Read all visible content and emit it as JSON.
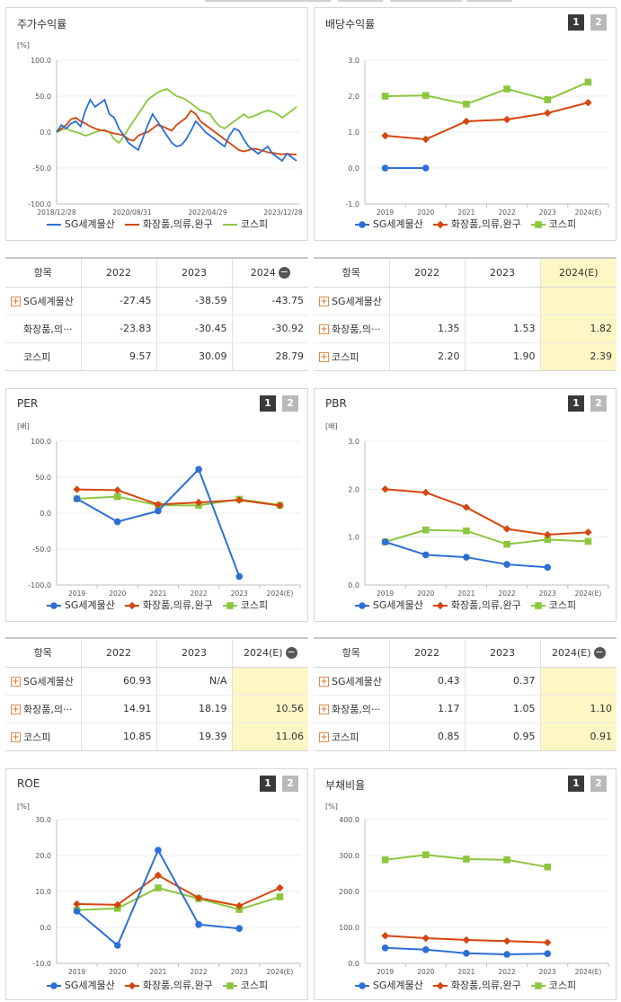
{
  "colors": {
    "sg": "#2c6fd6",
    "cosmetics": "#d6450f",
    "kospi": "#8cc63f",
    "highlight": "#fdf6c5"
  },
  "legend": [
    "SG세계물산",
    "화장품,의류,완구",
    "코스피"
  ],
  "panels": [
    {
      "id": "stock",
      "title": "주가수익률",
      "unit": "[%]",
      "buttons": [],
      "chart_data": {
        "type": "line",
        "title": "주가수익률",
        "ylabel": "[%]",
        "ylim": [
          -100,
          100
        ],
        "yticks": [
          "100.0",
          "50.0",
          "0.0",
          "-50.0",
          "-100.0"
        ],
        "xticks": [
          "2018/12/28",
          "2020/08/31",
          "2022/04/29",
          "2023/12/28"
        ],
        "x_range": [
          "2018/12/28",
          "2024/06/28"
        ],
        "series": [
          {
            "name": "SG세계물산",
            "values": [
              0,
              10,
              5,
              12,
              15,
              8,
              30,
              45,
              35,
              40,
              45,
              25,
              20,
              5,
              -5,
              -15,
              -20,
              -25,
              -8,
              10,
              25,
              15,
              5,
              -5,
              -15,
              -20,
              -18,
              -10,
              2,
              15,
              8,
              0,
              -5,
              -10,
              -15,
              -20,
              -5,
              5,
              2,
              -10,
              -20,
              -25,
              -30,
              -25,
              -20,
              -30,
              -35,
              -40,
              -30,
              -35,
              -40
            ]
          },
          {
            "name": "화장품,의류,완구",
            "values": [
              0,
              5,
              10,
              18,
              20,
              15,
              12,
              8,
              5,
              3,
              2,
              0,
              -2,
              -3,
              -5,
              -10,
              -12,
              -5,
              -2,
              0,
              5,
              10,
              8,
              5,
              2,
              10,
              15,
              20,
              30,
              25,
              15,
              10,
              5,
              0,
              -5,
              -10,
              -15,
              -20,
              -25,
              -27,
              -25,
              -23,
              -24,
              -26,
              -28,
              -29,
              -30,
              -31,
              -30,
              -31,
              -31
            ]
          },
          {
            "name": "코스피",
            "values": [
              0,
              3,
              5,
              2,
              0,
              -2,
              -5,
              -3,
              0,
              2,
              3,
              0,
              -10,
              -15,
              -5,
              5,
              15,
              25,
              35,
              45,
              50,
              55,
              58,
              60,
              55,
              50,
              48,
              45,
              40,
              35,
              30,
              28,
              25,
              15,
              8,
              5,
              10,
              15,
              20,
              25,
              20,
              22,
              25,
              28,
              30,
              28,
              25,
              20,
              25,
              30,
              35
            ]
          }
        ]
      },
      "table": {
        "headers": [
          "항목",
          "2022",
          "2023",
          "2024"
        ],
        "rows": [
          {
            "label": "SG세계물산",
            "plus": true,
            "values": [
              "-27.45",
              "-38.59",
              "-43.75"
            ]
          },
          {
            "label": "화장품,의···",
            "plus": false,
            "values": [
              "-23.83",
              "-30.45",
              "-30.92"
            ]
          },
          {
            "label": "코스피",
            "plus": false,
            "values": [
              "9.57",
              "30.09",
              "28.79"
            ]
          }
        ]
      }
    },
    {
      "id": "dividend",
      "title": "배당수익률",
      "unit": "",
      "buttons": [
        "1",
        "2"
      ],
      "chart_data": {
        "type": "line",
        "title": "배당수익률",
        "categories": [
          "2019",
          "2020",
          "2021",
          "2022",
          "2023",
          "2024(E)"
        ],
        "ylim": [
          -1,
          3
        ],
        "yticks": [
          "3.0",
          "2.0",
          "1.0",
          "0.0",
          "-1.0"
        ],
        "series": [
          {
            "name": "SG세계물산",
            "values": [
              0,
              0,
              null,
              null,
              null,
              null
            ]
          },
          {
            "name": "화장품,의류,완구",
            "values": [
              0.9,
              0.8,
              1.3,
              1.35,
              1.53,
              1.82
            ]
          },
          {
            "name": "코스피",
            "values": [
              2.0,
              2.02,
              1.78,
              2.2,
              1.9,
              2.39
            ]
          }
        ]
      },
      "table": {
        "headers": [
          "항목",
          "2022",
          "2023",
          "2024(E)"
        ],
        "rows": [
          {
            "label": "SG세계물산",
            "plus": true,
            "values": [
              "",
              "",
              ""
            ]
          },
          {
            "label": "화장품,의···",
            "plus": true,
            "values": [
              "1.35",
              "1.53",
              "1.82"
            ]
          },
          {
            "label": "코스피",
            "plus": true,
            "values": [
              "2.20",
              "1.90",
              "2.39"
            ]
          }
        ]
      }
    },
    {
      "id": "per",
      "title": "PER",
      "unit": "[배]",
      "buttons": [
        "1",
        "2"
      ],
      "chart_data": {
        "type": "line",
        "title": "PER",
        "ylabel": "[배]",
        "categories": [
          "2019",
          "2020",
          "2021",
          "2022",
          "2023",
          "2024(E)"
        ],
        "ylim": [
          -100,
          100
        ],
        "yticks": [
          "100.0",
          "50.0",
          "0.0",
          "-50.0",
          "-100.0"
        ],
        "series": [
          {
            "name": "SG세계물산",
            "values": [
              20,
              -12,
              3,
              60.93,
              -88,
              null
            ]
          },
          {
            "name": "화장품,의류,완구",
            "values": [
              33,
              32,
              12,
              14.91,
              18.19,
              10.56
            ]
          },
          {
            "name": "코스피",
            "values": [
              20,
              23,
              11,
              10.85,
              19.39,
              11.06
            ]
          }
        ]
      },
      "table": {
        "headers": [
          "항목",
          "2022",
          "2023",
          "2024(E)"
        ],
        "rows": [
          {
            "label": "SG세계물산",
            "plus": true,
            "values": [
              "60.93",
              "N/A",
              ""
            ]
          },
          {
            "label": "화장품,의···",
            "plus": true,
            "values": [
              "14.91",
              "18.19",
              "10.56"
            ]
          },
          {
            "label": "코스피",
            "plus": true,
            "values": [
              "10.85",
              "19.39",
              "11.06"
            ]
          }
        ]
      }
    },
    {
      "id": "pbr",
      "title": "PBR",
      "unit": "[배]",
      "buttons": [
        "1",
        "2"
      ],
      "chart_data": {
        "type": "line",
        "title": "PBR",
        "ylabel": "[배]",
        "categories": [
          "2019",
          "2020",
          "2021",
          "2022",
          "2023",
          "2024(E)"
        ],
        "ylim": [
          0,
          3
        ],
        "yticks": [
          "3.0",
          "2.0",
          "1.0",
          "0.0"
        ],
        "series": [
          {
            "name": "SG세계물산",
            "values": [
              0.9,
              0.63,
              0.58,
              0.43,
              0.37,
              null
            ]
          },
          {
            "name": "화장품,의류,완구",
            "values": [
              2.0,
              1.93,
              1.62,
              1.17,
              1.05,
              1.1
            ]
          },
          {
            "name": "코스피",
            "values": [
              0.9,
              1.15,
              1.13,
              0.85,
              0.95,
              0.91
            ]
          }
        ]
      },
      "table": {
        "headers": [
          "항목",
          "2022",
          "2023",
          "2024(E)"
        ],
        "rows": [
          {
            "label": "SG세계물산",
            "plus": true,
            "values": [
              "0.43",
              "0.37",
              ""
            ]
          },
          {
            "label": "화장품,의···",
            "plus": true,
            "values": [
              "1.17",
              "1.05",
              "1.10"
            ]
          },
          {
            "label": "코스피",
            "plus": true,
            "values": [
              "0.85",
              "0.95",
              "0.91"
            ]
          }
        ]
      }
    },
    {
      "id": "roe",
      "title": "ROE",
      "unit": "[%]",
      "buttons": [
        "1",
        "2"
      ],
      "chart_data": {
        "type": "line",
        "title": "ROE",
        "ylabel": "[%]",
        "categories": [
          "2019",
          "2020",
          "2021",
          "2022",
          "2023",
          "2024(E)"
        ],
        "ylim": [
          -10,
          30
        ],
        "yticks": [
          "30.0",
          "20.0",
          "10.0",
          "0.0",
          "-10.0"
        ],
        "series": [
          {
            "name": "SG세계물산",
            "values": [
              4.5,
              -5,
              21.5,
              0.8,
              -0.3,
              null
            ]
          },
          {
            "name": "화장품,의류,완구",
            "values": [
              6.5,
              6.3,
              14.5,
              8.2,
              6.0,
              11.0
            ]
          },
          {
            "name": "코스피",
            "values": [
              4.8,
              5.3,
              11.0,
              8.0,
              5.0,
              8.5
            ]
          }
        ]
      }
    },
    {
      "id": "debt",
      "title": "부채비율",
      "unit": "[%]",
      "buttons": [
        "1",
        "2"
      ],
      "chart_data": {
        "type": "line",
        "title": "부채비율",
        "ylabel": "[%]",
        "categories": [
          "2019",
          "2020",
          "2021",
          "2022",
          "2023",
          "2024(E)"
        ],
        "ylim": [
          0,
          400
        ],
        "yticks": [
          "400.0",
          "300.0",
          "200.0",
          "100.0",
          "0.0"
        ],
        "series": [
          {
            "name": "SG세계물산",
            "values": [
              43,
              38,
              28,
              25,
              27,
              null
            ]
          },
          {
            "name": "화장품,의류,완구",
            "values": [
              77,
              70,
              65,
              62,
              58,
              null
            ]
          },
          {
            "name": "코스피",
            "values": [
              288,
              302,
              290,
              288,
              268,
              null
            ]
          }
        ]
      }
    }
  ]
}
